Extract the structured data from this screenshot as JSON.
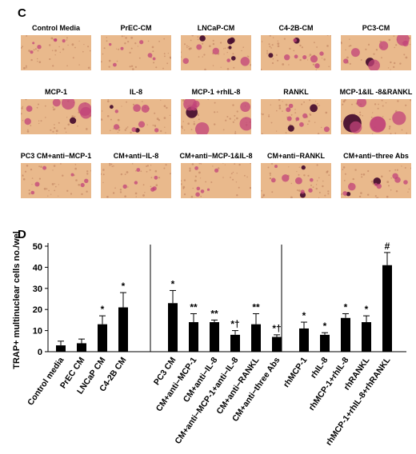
{
  "panel_c_label": "C",
  "panel_d_label": "D",
  "micrographs": [
    {
      "label": "Control Media",
      "density": "low"
    },
    {
      "label": "PrEC-CM",
      "density": "low"
    },
    {
      "label": "LNCaP-CM",
      "density": "high"
    },
    {
      "label": "C4-2B-CM",
      "density": "medium"
    },
    {
      "label": "PC3-CM",
      "density": "large"
    },
    {
      "label": "MCP-1",
      "density": "large"
    },
    {
      "label": "IL-8",
      "density": "medium"
    },
    {
      "label": "MCP-1 +rhIL-8",
      "density": "large"
    },
    {
      "label": "RANKL",
      "density": "medium"
    },
    {
      "label": "MCP-1&IL -8&RANKL",
      "density": "xlarge"
    },
    {
      "label": "PC3 CM+anti−MCP-1",
      "density": "low"
    },
    {
      "label": "CM+anti−IL-8",
      "density": "low"
    },
    {
      "label": "CM+anti−MCP-1&IL-8",
      "density": "low"
    },
    {
      "label": "CM+anti−RANKL",
      "density": "medium"
    },
    {
      "label": "CM+anti−three Abs",
      "density": "medium"
    }
  ],
  "chart_data": {
    "type": "bar",
    "ylabel": "TRAP+ multinuclear cells no./well",
    "ylim": [
      0,
      50
    ],
    "yticks": [
      0,
      10,
      20,
      30,
      40,
      50
    ],
    "grid": false,
    "groups": [
      {
        "categories": [
          "Control media",
          "PrEC CM",
          "LNCaP CM",
          "C4-2B CM"
        ],
        "values": [
          3,
          4,
          13,
          21
        ],
        "errors": [
          2,
          2,
          4,
          7
        ],
        "annotations": [
          "",
          "",
          "*",
          "*"
        ]
      },
      {
        "categories": [
          "PC3 CM",
          "CM+anti−MCP-1",
          "CM+anti−IL-8",
          "CM+anti−MCP-1+anti−IL-8",
          "CM+anti−RANKL",
          "CM+anti−three Abs"
        ],
        "values": [
          23,
          14,
          14,
          8,
          13,
          7
        ],
        "errors": [
          6,
          4,
          1,
          2,
          5,
          1
        ],
        "annotations": [
          "*",
          "**",
          "**",
          "*†",
          "**",
          "*†"
        ]
      },
      {
        "categories": [
          "rhMCP-1",
          "rhIL-8",
          "rhMCP-1+rhIL-8",
          "rhRANKL",
          "rhMCP-1+rhIL-8+rhRANKL"
        ],
        "values": [
          11,
          8,
          16,
          14,
          41
        ],
        "errors": [
          3,
          1,
          2,
          3,
          6
        ],
        "annotations": [
          "*",
          "*",
          "*",
          "*",
          "#"
        ]
      }
    ]
  },
  "colors": {
    "bar": "#000000",
    "micro_bg": "#e9b98c",
    "cell_pink": "#c2437a",
    "cell_dark": "#4a1030"
  }
}
